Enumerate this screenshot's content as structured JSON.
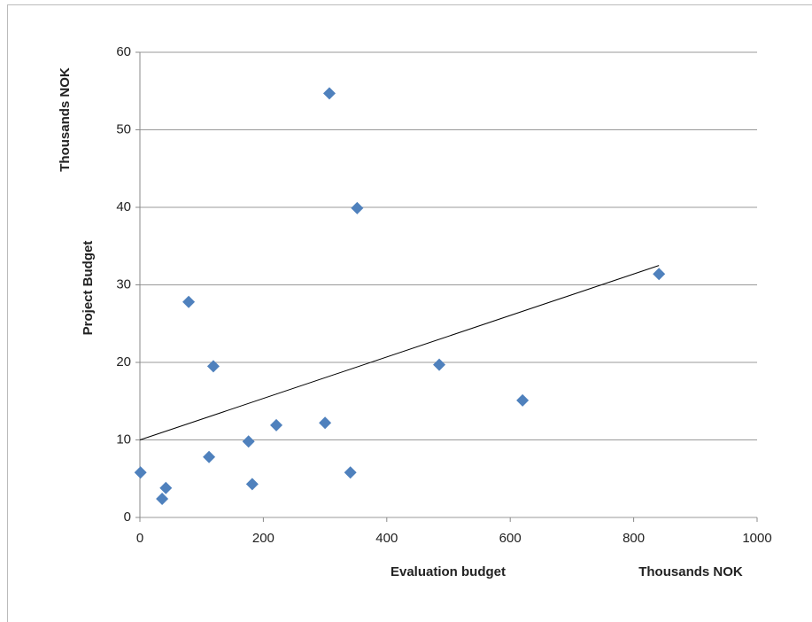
{
  "chart_data": {
    "type": "scatter",
    "y_unit": "Thousands NOK",
    "y_label": "Project Budget",
    "x_label": "Evaluation budget",
    "x_unit": "Thousands NOK",
    "x": [
      1,
      36,
      42,
      79,
      112,
      119,
      176,
      182,
      221,
      300,
      307,
      341,
      352,
      485,
      620,
      841
    ],
    "series": [
      {
        "color": "#4f81bd",
        "values": [
          5.8,
          2.4,
          3.8,
          27.8,
          7.8,
          19.5,
          9.8,
          4.3,
          11.9,
          12.2,
          54.7,
          5.8,
          39.9,
          19.7,
          15.1,
          31.4
        ]
      }
    ],
    "trendline": {
      "x": [
        0,
        841
      ],
      "y": [
        10,
        32.5
      ],
      "color": "#000000"
    },
    "xlim": [
      0,
      1000
    ],
    "xticks": [
      0,
      200,
      400,
      600,
      800,
      1000
    ],
    "ylim": [
      0,
      60
    ],
    "yticks": [
      0,
      10,
      20,
      30,
      40,
      50,
      60
    ],
    "grid": true
  }
}
